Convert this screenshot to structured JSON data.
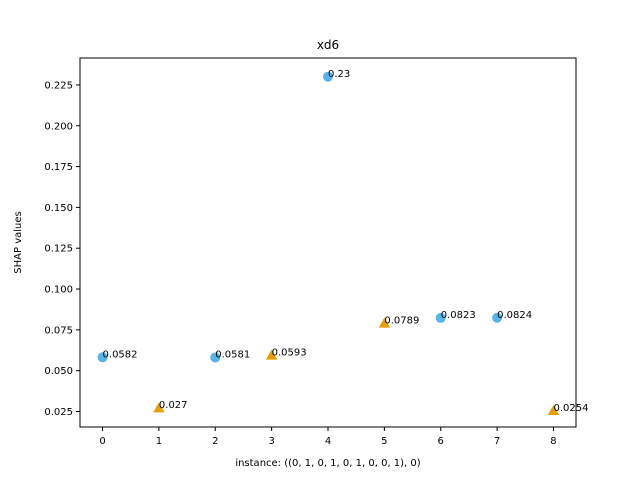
{
  "chart_data": {
    "type": "scatter",
    "title": "xd6",
    "xlabel": "instance: ((0, 1, 0, 1, 0, 1, 0, 0, 1), 0)",
    "ylabel": "SHAP values",
    "xlim": [
      -0.4,
      8.4
    ],
    "ylim": [
      0.0155,
      0.2415
    ],
    "xticks": [
      0,
      1,
      2,
      3,
      4,
      5,
      6,
      7,
      8
    ],
    "xtick_labels": [
      "0",
      "1",
      "2",
      "3",
      "4",
      "5",
      "6",
      "7",
      "8"
    ],
    "yticks": [
      0.025,
      0.05,
      0.075,
      0.1,
      0.125,
      0.15,
      0.175,
      0.2,
      0.225
    ],
    "ytick_labels": [
      "0.025",
      "0.050",
      "0.075",
      "0.100",
      "0.125",
      "0.150",
      "0.175",
      "0.200",
      "0.225"
    ],
    "grid": false,
    "points": [
      {
        "x": 0,
        "y": 0.0582,
        "label": "0.0582",
        "marker": "circle",
        "color": "#56b4e9"
      },
      {
        "x": 1,
        "y": 0.027,
        "label": "0.027",
        "marker": "triangle",
        "color": "#e69f00"
      },
      {
        "x": 2,
        "y": 0.0581,
        "label": "0.0581",
        "marker": "circle",
        "color": "#56b4e9"
      },
      {
        "x": 3,
        "y": 0.0593,
        "label": "0.0593",
        "marker": "triangle",
        "color": "#e69f00"
      },
      {
        "x": 4,
        "y": 0.23,
        "label": "0.23",
        "marker": "circle",
        "color": "#56b4e9"
      },
      {
        "x": 5,
        "y": 0.0789,
        "label": "0.0789",
        "marker": "triangle",
        "color": "#e69f00"
      },
      {
        "x": 6,
        "y": 0.0823,
        "label": "0.0823",
        "marker": "circle",
        "color": "#56b4e9"
      },
      {
        "x": 7,
        "y": 0.0824,
        "label": "0.0824",
        "marker": "circle",
        "color": "#56b4e9"
      },
      {
        "x": 8,
        "y": 0.0254,
        "label": "0.0254",
        "marker": "triangle",
        "color": "#e69f00"
      }
    ]
  }
}
